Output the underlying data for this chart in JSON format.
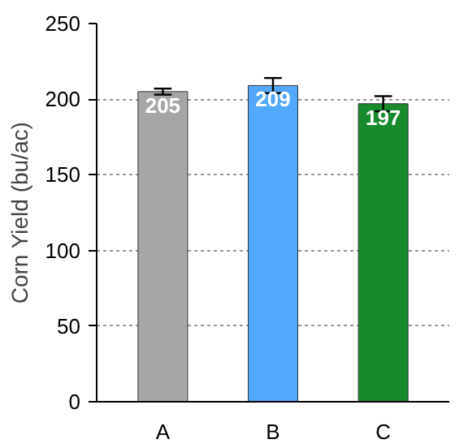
{
  "chart_data": {
    "type": "bar",
    "ylabel": "Corn Yield (bu/ac)",
    "categories": [
      "A",
      "B",
      "C"
    ],
    "values": [
      205,
      209,
      197
    ],
    "colors": [
      "#a5a7a5",
      "#52a8fc",
      "#178a2c"
    ],
    "errors": [
      2,
      5,
      5
    ],
    "ylim": [
      0,
      250
    ],
    "yticks": [
      0,
      50,
      100,
      150,
      200,
      250
    ],
    "grid": "y",
    "data_labels": true
  }
}
